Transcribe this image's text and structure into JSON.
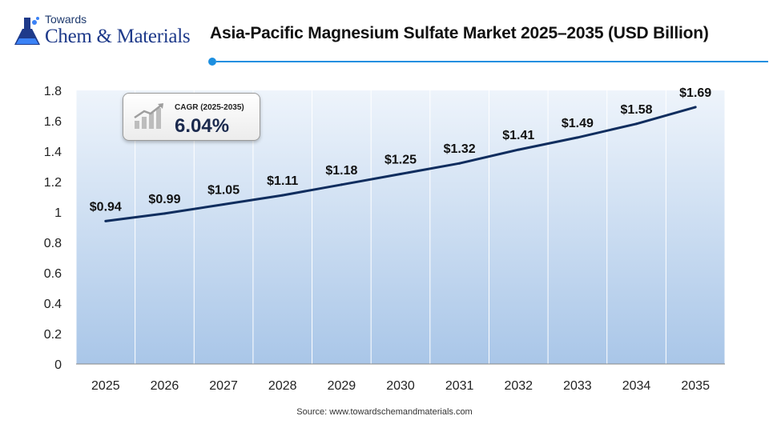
{
  "header": {
    "logo_top": "Towards",
    "logo_main": "Chem & Materials",
    "title": "Asia-Pacific Magnesium Sulfate Market 2025–2035 (USD Billion)"
  },
  "cagr": {
    "label": "CAGR (2025-2035)",
    "value": "6.04%"
  },
  "footer": {
    "source": "Source:  www.towardschemandmaterials.com"
  },
  "colors": {
    "line": "#0f2d5e",
    "area_top": "#eef4fb",
    "area_bottom": "#a9c6e8",
    "accent": "#1d8fe0"
  },
  "chart_data": {
    "type": "line",
    "title": "Asia-Pacific Magnesium Sulfate Market 2025–2035 (USD Billion)",
    "x": [
      "2025",
      "2026",
      "2027",
      "2028",
      "2029",
      "2030",
      "2031",
      "2032",
      "2033",
      "2034",
      "2035"
    ],
    "values": [
      0.94,
      0.99,
      1.05,
      1.11,
      1.18,
      1.25,
      1.32,
      1.41,
      1.49,
      1.58,
      1.69
    ],
    "data_labels": [
      "$0.94",
      "$0.99",
      "$1.05",
      "$1.11",
      "$1.18",
      "$1.25",
      "$1.32",
      "$1.41",
      "$1.49",
      "$1.58",
      "$1.69"
    ],
    "ylim": [
      0,
      1.8
    ],
    "yticks": [
      "0",
      "0.2",
      "0.4",
      "0.6",
      "0.8",
      "1",
      "1.2",
      "1.4",
      "1.6",
      "1.8"
    ],
    "xlabel": "",
    "ylabel": "",
    "grid": "vertical",
    "legend": "none"
  }
}
